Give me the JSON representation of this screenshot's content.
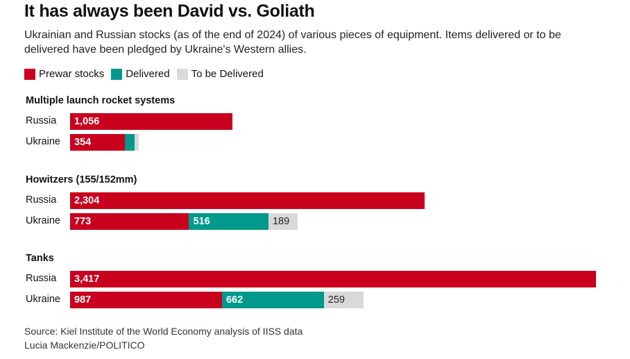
{
  "title": "It has always been David vs. Goliath",
  "subtitle": "Ukrainian and Russian stocks (as of the end of 2024) of various pieces of equipment. Items delivered or to be delivered have been pledged by Ukraine's Western allies.",
  "colors": {
    "prewar": "#c8001e",
    "delivered": "#00998c",
    "tobe": "#d9d9d9"
  },
  "chart_data": {
    "type": "bar",
    "orientation": "horizontal-stacked",
    "legend": [
      "Prewar stocks",
      "Delivered",
      "To be Delivered"
    ],
    "groups": [
      {
        "title": "Multiple launch rocket systems",
        "rows": [
          {
            "label": "Russia",
            "values": [
              1056,
              0,
              0
            ],
            "labels": [
              "1,056",
              "",
              ""
            ]
          },
          {
            "label": "Ukraine",
            "values": [
              354,
              66,
              15
            ],
            "labels": [
              "354",
              "",
              ""
            ]
          }
        ]
      },
      {
        "title": "Howitzers (155/152mm)",
        "rows": [
          {
            "label": "Russia",
            "values": [
              2304,
              0,
              0
            ],
            "labels": [
              "2,304",
              "",
              ""
            ]
          },
          {
            "label": "Ukraine",
            "values": [
              773,
              516,
              189
            ],
            "labels": [
              "773",
              "516",
              "189"
            ]
          }
        ]
      },
      {
        "title": "Tanks",
        "rows": [
          {
            "label": "Russia",
            "values": [
              3417,
              0,
              0
            ],
            "labels": [
              "3,417",
              "",
              ""
            ]
          },
          {
            "label": "Ukraine",
            "values": [
              987,
              662,
              259
            ],
            "labels": [
              "987",
              "662",
              "259"
            ]
          }
        ]
      }
    ],
    "xlim": [
      0,
      3417
    ]
  },
  "footer": {
    "source": "Source: Kiel Institute of the World Economy analysis of IISS data",
    "credit": "Lucia Mackenzie/POLITICO"
  }
}
